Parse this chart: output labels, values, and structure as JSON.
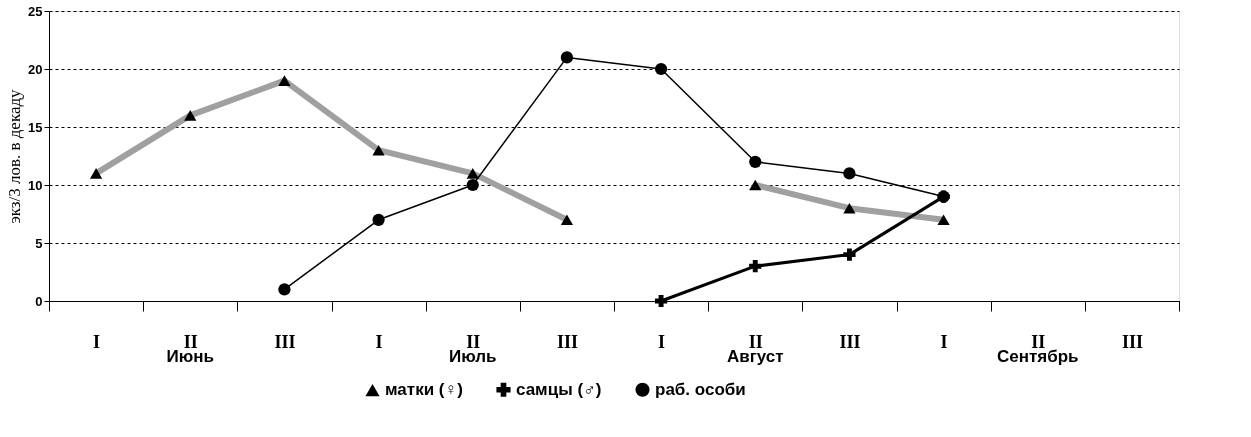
{
  "chart_data": {
    "type": "line",
    "ylabel": "экз/3 лов. в декаду",
    "categories": [
      "I",
      "II",
      "III",
      "I",
      "II",
      "III",
      "I",
      "II",
      "III",
      "I",
      "II",
      "III"
    ],
    "series": [
      {
        "name": "матки (♀)",
        "color": "#a0a0a0",
        "marker": "triangle",
        "values": [
          11,
          16,
          19,
          13,
          11,
          7,
          null,
          10,
          8,
          7,
          null,
          null
        ]
      },
      {
        "name": "самцы (♂)",
        "color": "#000000",
        "marker": "cross",
        "values": [
          null,
          null,
          null,
          null,
          null,
          null,
          0,
          3,
          4,
          9,
          null,
          null
        ]
      },
      {
        "name": "раб. особи",
        "color": "#000000",
        "marker": "circle",
        "values": [
          null,
          null,
          1,
          7,
          10,
          21,
          20,
          12,
          11,
          9,
          null,
          null
        ]
      }
    ],
    "annotations": [
      "Июнь",
      "Июль",
      "Август",
      "Сентябрь"
    ],
    "ylim": [
      0,
      25
    ],
    "yticks": [
      0,
      5,
      10,
      15,
      20,
      25
    ],
    "grid": "y",
    "legend": "bottom"
  }
}
